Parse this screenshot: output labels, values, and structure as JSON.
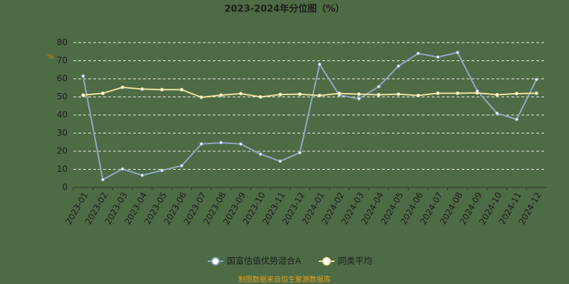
{
  "chart_data": {
    "type": "line",
    "title": "2023-2024年分位图（%）",
    "y_unit": "%",
    "categories": [
      "2023-01",
      "2023-02",
      "2023-03",
      "2023-04",
      "2023-05",
      "2023-06",
      "2023-07",
      "2023-08",
      "2023-09",
      "2023-10",
      "2023-11",
      "2023-12",
      "2024-01",
      "2024-02",
      "2024-03",
      "2024-04",
      "2024-05",
      "2024-06",
      "2024-07",
      "2024-08",
      "2024-09",
      "2024-10",
      "2024-11",
      "2024-12"
    ],
    "series": [
      {
        "name": "国富估值优势混合A",
        "color": "#8fa9c4",
        "values": [
          61.5,
          4.3,
          10.2,
          6.7,
          9.4,
          12,
          24,
          24.7,
          24,
          18.4,
          14.5,
          19.2,
          68,
          51,
          49,
          55.7,
          67,
          74,
          72,
          74.5,
          53.3,
          41,
          37.6,
          59.6
        ]
      },
      {
        "name": "同类平均",
        "color": "#f0e0a0",
        "values": [
          51,
          52,
          55.3,
          54.3,
          54,
          54,
          49.8,
          51,
          51.8,
          50,
          51.3,
          51.5,
          50.8,
          51.9,
          51.5,
          51.2,
          51.5,
          50.8,
          52,
          52,
          52.2,
          51.2,
          51.8,
          52
        ]
      }
    ],
    "ylim": [
      0,
      80
    ],
    "yticks": [
      0,
      10,
      20,
      30,
      40,
      50,
      60,
      70,
      80
    ],
    "grid": true,
    "footer": "制图数据来自恒生聚源数据库"
  }
}
